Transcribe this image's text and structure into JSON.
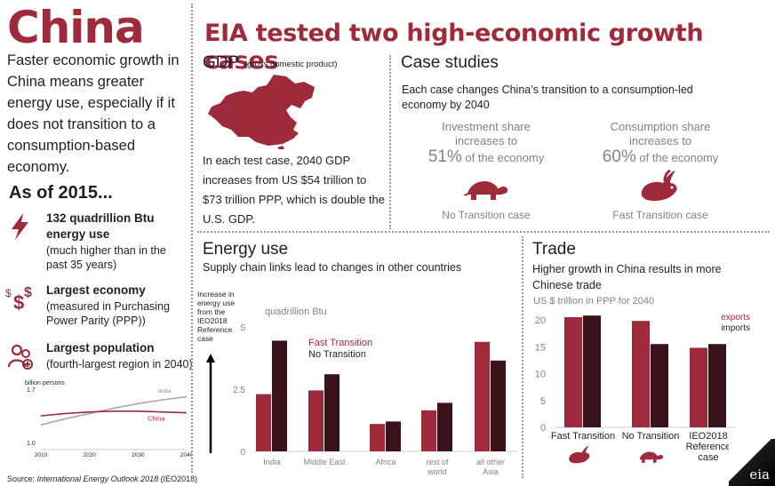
{
  "left": {
    "title": "China",
    "intro": "Faster economic growth in China means greater energy use, especially if it does not transition to a consumption-based economy.",
    "as_of": "As of 2015...",
    "stats": [
      {
        "title": "132 quadrillion Btu energy use",
        "sub": "(much higher than in the past 35 years)",
        "icon": "lightning-icon"
      },
      {
        "title": "Largest economy",
        "sub": "(measured in Purchasing Power Parity (PPP))",
        "icon": "dollar-icon"
      },
      {
        "title": "Largest population",
        "sub": "(fourth-largest region in 2040)",
        "icon": "people-icon"
      }
    ]
  },
  "main_title": "EIA tested two high-economic growth cases",
  "gdp": {
    "title": "GDP",
    "subtitle": "(gross domestic product)",
    "text": "In each test case, 2040 GDP increases from US $54 trillion to $73 trillion PPP, which is double the U.S. GDP."
  },
  "cases": {
    "title": "Case studies",
    "subtitle": "Each case changes China’s transition to a consumption-led economy by 2040",
    "items": [
      {
        "head": "Investment share increases to",
        "pct": "51%",
        "tail": "of the economy",
        "name": "No Transition case",
        "icon": "turtle-icon"
      },
      {
        "head": "Consumption share increases to",
        "pct": "60%",
        "tail": "of the economy",
        "name": "Fast Transition case",
        "icon": "rabbit-icon"
      }
    ]
  },
  "energy": {
    "title": "Energy use",
    "subtitle": "Supply chain links lead to changes in other countries"
  },
  "trade": {
    "title": "Trade",
    "subtitle": "Higher growth in China results in more Chinese trade"
  },
  "source": {
    "prefix": "Source: ",
    "title": "International Energy Outlook 2018",
    "suffix": " (IEO2018)"
  },
  "logo": "eia",
  "colors": {
    "maroon": "#9e2a3b",
    "dark": "#3a1219",
    "gray": "#808285",
    "india": "#a7a9ac"
  },
  "chart_data": [
    {
      "type": "line",
      "ylabel": "billion persons",
      "ylim": [
        1.0,
        1.7
      ],
      "yticks": [
        "1.7",
        "1.0"
      ],
      "xticks": [
        "2010",
        "2020",
        "2030",
        "2040"
      ],
      "x": [
        2010,
        2015,
        2020,
        2025,
        2030,
        2035,
        2040
      ],
      "series": [
        {
          "name": "India",
          "values": [
            1.23,
            1.31,
            1.38,
            1.45,
            1.51,
            1.56,
            1.6
          ]
        },
        {
          "name": "China",
          "values": [
            1.35,
            1.38,
            1.4,
            1.41,
            1.41,
            1.4,
            1.39
          ]
        }
      ]
    },
    {
      "type": "bar",
      "annotation": "Increase in energy use from the IEO2018 Reference case",
      "ylabel": "quadrillion Btu",
      "ylim": [
        0,
        5
      ],
      "yticks": [
        "5",
        "2.5",
        "0"
      ],
      "categories": [
        "India",
        "Middle East",
        "Africa",
        "rest of world",
        "all other Asia"
      ],
      "series": [
        {
          "name": "Fast Transition",
          "values": [
            2.3,
            2.45,
            1.1,
            1.65,
            4.4
          ]
        },
        {
          "name": "No Transition",
          "values": [
            4.45,
            3.1,
            1.2,
            1.95,
            3.65
          ]
        }
      ]
    },
    {
      "type": "bar",
      "ylabel": "US $ trillion in PPP for 2040",
      "ylim": [
        0,
        20
      ],
      "yticks": [
        "20",
        "15",
        "10",
        "5",
        "0"
      ],
      "categories": [
        "Fast Transition",
        "No Transition",
        "IEO2018 Reference case"
      ],
      "series": [
        {
          "name": "exports",
          "values": [
            20.5,
            19.8,
            14.8
          ]
        },
        {
          "name": "imports",
          "values": [
            20.8,
            15.5,
            15.5
          ]
        }
      ]
    }
  ]
}
